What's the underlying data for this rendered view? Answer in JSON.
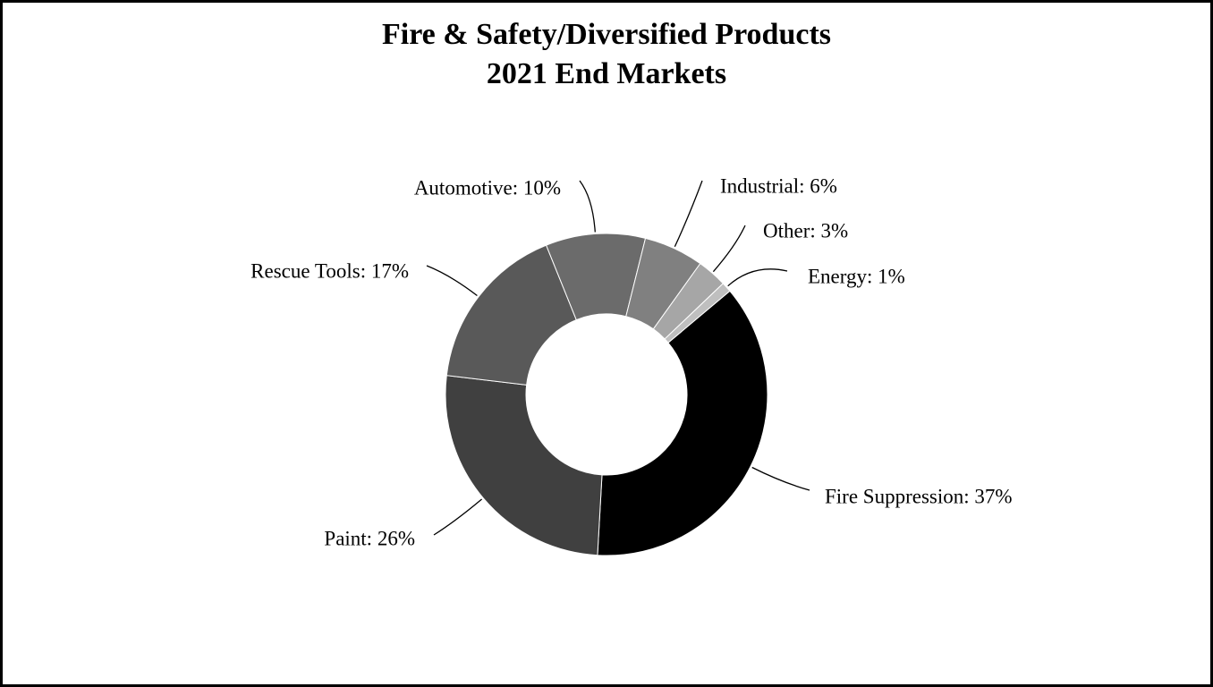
{
  "chart_data": {
    "type": "donut",
    "title": "Fire & Safety/Diversified Products",
    "subtitle": "2021 End Markets",
    "categories": [
      "Fire Suppression",
      "Paint",
      "Rescue Tools",
      "Automotive",
      "Industrial",
      "Other",
      "Energy"
    ],
    "values": [
      37,
      26,
      17,
      10,
      6,
      3,
      1
    ],
    "value_labels": [
      "Fire Suppression: 37%",
      "Paint: 26%",
      "Rescue Tools: 17%",
      "Automotive: 10%",
      "Industrial: 6%",
      "Other: 3%",
      "Energy: 1%"
    ],
    "colors": [
      "#000000",
      "#404040",
      "#595959",
      "#6b6b6b",
      "#808080",
      "#a6a6a6",
      "#bfbfbf"
    ]
  }
}
